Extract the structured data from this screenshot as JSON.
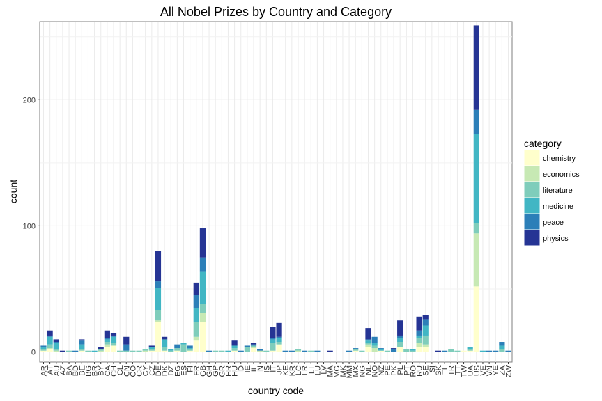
{
  "chart_data": {
    "type": "bar",
    "stacked": true,
    "title": "All Nobel Prizes by Country and Category",
    "xlabel": "country code",
    "ylabel": "count",
    "ylim": [
      -8,
      262
    ],
    "yticks": [
      0,
      100,
      200
    ],
    "grid": true,
    "legend_title": "category",
    "legend_position": "right",
    "categories": [
      "AR",
      "AT",
      "AU",
      "AZ",
      "BA",
      "BD",
      "BE",
      "BG",
      "BR",
      "BY",
      "CA",
      "CH",
      "CL",
      "CN",
      "CO",
      "CR",
      "CY",
      "CZ",
      "DE",
      "DK",
      "DZ",
      "EG",
      "ES",
      "FI",
      "FR",
      "GB",
      "GH",
      "GP",
      "GR",
      "HR",
      "HU",
      "ID",
      "IE",
      "IL",
      "IN",
      "IS",
      "IT",
      "JP",
      "KE",
      "KR",
      "LC",
      "LR",
      "LT",
      "LU",
      "LV",
      "MA",
      "MG",
      "MK",
      "MM",
      "MX",
      "NG",
      "NL",
      "NO",
      "NZ",
      "PE",
      "PK",
      "PL",
      "PT",
      "RO",
      "RU",
      "SE",
      "SI",
      "SK",
      "TL",
      "TR",
      "TT",
      "TW",
      "UA",
      "US",
      "VE",
      "VN",
      "YE",
      "ZA",
      "ZW"
    ],
    "series": [
      {
        "name": "chemistry",
        "color": "#ffffcc",
        "values": [
          1,
          2,
          0,
          0,
          0,
          0,
          1,
          0,
          0,
          0,
          4,
          5,
          0,
          0,
          0,
          0,
          0,
          1,
          24,
          1,
          0,
          1,
          0,
          1,
          9,
          24,
          0,
          0,
          0,
          0,
          1,
          0,
          0,
          3,
          0,
          0,
          1,
          6,
          0,
          0,
          0,
          0,
          0,
          0,
          0,
          0,
          0,
          0,
          0,
          1,
          0,
          4,
          0,
          1,
          0,
          0,
          4,
          0,
          0,
          4,
          4,
          0,
          0,
          0,
          0,
          0,
          1,
          1,
          52,
          0,
          0,
          0,
          0,
          0
        ]
      },
      {
        "name": "economics",
        "color": "#c7e9b4",
        "values": [
          0,
          1,
          1,
          0,
          0,
          0,
          0,
          0,
          0,
          1,
          2,
          0,
          0,
          0,
          0,
          0,
          1,
          0,
          1,
          0,
          0,
          0,
          0,
          0,
          3,
          7,
          0,
          0,
          0,
          0,
          0,
          0,
          0,
          1,
          1,
          0,
          0,
          0,
          0,
          0,
          1,
          0,
          0,
          0,
          0,
          0,
          0,
          0,
          0,
          0,
          0,
          2,
          3,
          0,
          0,
          0,
          0,
          0,
          0,
          3,
          2,
          0,
          0,
          0,
          0,
          0,
          0,
          0,
          42,
          0,
          0,
          0,
          0,
          0
        ]
      },
      {
        "name": "literature",
        "color": "#7fcdbb",
        "values": [
          1,
          3,
          1,
          0,
          1,
          0,
          1,
          1,
          0,
          1,
          2,
          2,
          1,
          1,
          1,
          1,
          1,
          1,
          8,
          3,
          1,
          2,
          6,
          1,
          12,
          7,
          0,
          1,
          1,
          0,
          2,
          0,
          4,
          1,
          0,
          1,
          6,
          2,
          0,
          0,
          1,
          0,
          1,
          0,
          0,
          0,
          0,
          0,
          0,
          1,
          1,
          1,
          2,
          0,
          1,
          0,
          4,
          2,
          1,
          4,
          7,
          0,
          0,
          0,
          2,
          1,
          0,
          1,
          8,
          0,
          0,
          0,
          2,
          0
        ]
      },
      {
        "name": "medicine",
        "color": "#41b6c4",
        "values": [
          2,
          6,
          5,
          0,
          0,
          0,
          4,
          0,
          1,
          0,
          2,
          5,
          0,
          0,
          0,
          0,
          0,
          2,
          18,
          6,
          1,
          0,
          1,
          1,
          11,
          26,
          0,
          0,
          0,
          1,
          2,
          0,
          0,
          0,
          0,
          0,
          3,
          3,
          0,
          0,
          0,
          0,
          0,
          0,
          0,
          0,
          0,
          0,
          0,
          0,
          0,
          2,
          2,
          1,
          0,
          0,
          3,
          0,
          1,
          2,
          8,
          0,
          0,
          0,
          0,
          0,
          0,
          2,
          71,
          1,
          0,
          0,
          3,
          0
        ]
      },
      {
        "name": "peace",
        "color": "#2c7fb8",
        "values": [
          1,
          1,
          1,
          0,
          0,
          1,
          3,
          0,
          0,
          0,
          1,
          1,
          0,
          5,
          0,
          0,
          0,
          0,
          5,
          0,
          0,
          3,
          0,
          2,
          10,
          11,
          1,
          0,
          0,
          0,
          0,
          1,
          1,
          1,
          1,
          0,
          1,
          1,
          1,
          1,
          0,
          1,
          0,
          1,
          0,
          0,
          0,
          0,
          1,
          1,
          0,
          1,
          5,
          1,
          0,
          2,
          2,
          0,
          0,
          4,
          5,
          0,
          0,
          1,
          0,
          0,
          0,
          0,
          19,
          0,
          1,
          1,
          3,
          1
        ]
      },
      {
        "name": "physics",
        "color": "#253494",
        "values": [
          0,
          4,
          2,
          1,
          0,
          0,
          1,
          0,
          0,
          2,
          6,
          2,
          0,
          6,
          0,
          0,
          0,
          1,
          24,
          2,
          0,
          0,
          0,
          0,
          10,
          23,
          0,
          0,
          0,
          0,
          4,
          0,
          0,
          1,
          0,
          0,
          9,
          11,
          0,
          0,
          0,
          0,
          0,
          0,
          0,
          1,
          0,
          0,
          0,
          0,
          0,
          9,
          0,
          0,
          0,
          1,
          12,
          0,
          0,
          11,
          3,
          0,
          1,
          0,
          0,
          0,
          0,
          0,
          67,
          0,
          0,
          0,
          0,
          0
        ]
      }
    ]
  }
}
